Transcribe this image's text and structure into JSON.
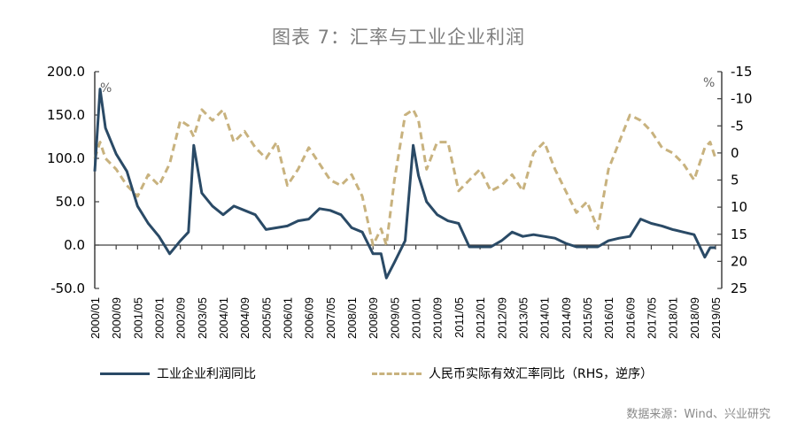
{
  "title": "图表 7：汇率与工业企业利润",
  "source": "数据来源：Wind、兴业研究",
  "legend": {
    "series1": "工业企业利润同比",
    "series2": "人民币实际有效汇率同比（RHS，逆序）"
  },
  "axes": {
    "left_unit": "%",
    "right_unit": "%",
    "left_ticks": [
      "200.0",
      "150.0",
      "100.0",
      "50.0",
      "0.0",
      "-50.0"
    ],
    "right_ticks": [
      "-15",
      "-10",
      "-5",
      "0",
      "5",
      "10",
      "15",
      "20",
      "25"
    ]
  },
  "colors": {
    "series1": "#2a4a66",
    "series2": "#c8b27e"
  },
  "chart_data": {
    "type": "line",
    "title": "图表 7：汇率与工业企业利润",
    "xlabel": "",
    "ylabel": "%",
    "ylabel_right": "%",
    "ylim": [
      -50,
      200
    ],
    "ylim_right": [
      25,
      -15
    ],
    "right_axis_inverted": true,
    "grid": false,
    "legend_position": "bottom",
    "categories": [
      "2000/01",
      "2000/09",
      "2001/05",
      "2002/01",
      "2002/09",
      "2003/05",
      "2004/01",
      "2004/09",
      "2005/05",
      "2006/01",
      "2006/09",
      "2007/05",
      "2008/01",
      "2008/09",
      "2009/05",
      "2010/01",
      "2010/09",
      "2011/05",
      "2012/01",
      "2012/09",
      "2013/05",
      "2014/01",
      "2014/09",
      "2015/05",
      "2016/01",
      "2016/09",
      "2017/05",
      "2018/01",
      "2018/09",
      "2019/05"
    ],
    "x": [
      "2000/01",
      "2000/03",
      "2000/05",
      "2000/09",
      "2001/01",
      "2001/05",
      "2001/09",
      "2002/01",
      "2002/05",
      "2002/09",
      "2002/12",
      "2003/02",
      "2003/05",
      "2003/09",
      "2004/01",
      "2004/05",
      "2004/09",
      "2005/01",
      "2005/05",
      "2005/09",
      "2006/01",
      "2006/05",
      "2006/09",
      "2007/01",
      "2007/05",
      "2007/09",
      "2008/01",
      "2008/05",
      "2008/09",
      "2008/12",
      "2009/02",
      "2009/05",
      "2009/09",
      "2009/12",
      "2010/02",
      "2010/05",
      "2010/09",
      "2011/01",
      "2011/05",
      "2011/09",
      "2012/01",
      "2012/05",
      "2012/09",
      "2013/01",
      "2013/05",
      "2013/09",
      "2014/01",
      "2014/05",
      "2014/09",
      "2015/01",
      "2015/05",
      "2015/09",
      "2016/01",
      "2016/05",
      "2016/09",
      "2017/01",
      "2017/05",
      "2017/09",
      "2018/01",
      "2018/05",
      "2018/09",
      "2019/01",
      "2019/03",
      "2019/05"
    ],
    "series": [
      {
        "name": "工业企业利润同比",
        "axis": "left",
        "values": [
          85,
          180,
          135,
          105,
          85,
          45,
          25,
          10,
          -10,
          5,
          15,
          115,
          60,
          45,
          35,
          45,
          40,
          35,
          18,
          20,
          22,
          28,
          30,
          42,
          40,
          35,
          20,
          15,
          -10,
          -10,
          -38,
          -20,
          5,
          115,
          80,
          50,
          35,
          28,
          25,
          -2,
          -2,
          -2,
          5,
          15,
          10,
          12,
          10,
          8,
          2,
          -2,
          -2,
          -2,
          5,
          8,
          10,
          30,
          25,
          22,
          18,
          15,
          12,
          -14,
          -3,
          -3
        ]
      },
      {
        "name": "人民币实际有效汇率同比（RHS，逆序）",
        "axis": "right",
        "values": [
          1,
          -2,
          1,
          3,
          6,
          8,
          4,
          6,
          2,
          -6,
          -5,
          -3,
          -8,
          -6,
          -8,
          -2,
          -4,
          -1,
          1,
          -2,
          6,
          3,
          -1,
          2,
          5,
          6,
          4,
          8,
          17,
          14,
          17,
          5,
          -7,
          -8,
          -6,
          3,
          -2,
          -2,
          7,
          5,
          3,
          7,
          6,
          4,
          7,
          0,
          -2,
          3,
          7,
          11,
          9,
          14,
          3,
          -2,
          -7,
          -6,
          -4,
          -1,
          0,
          2,
          5,
          -1,
          -2,
          1
        ]
      }
    ]
  }
}
